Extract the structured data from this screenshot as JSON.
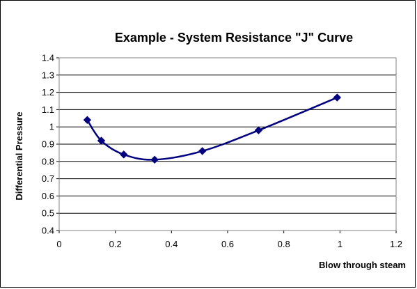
{
  "chart_data": {
    "type": "line",
    "title": "Example - System Resistance \"J\" Curve",
    "xlabel": "Blow through steam",
    "ylabel": "Differential Pressure",
    "xlim": [
      0,
      1.2
    ],
    "ylim": [
      0.4,
      1.4
    ],
    "x_ticks": [
      "0",
      "0.2",
      "0.4",
      "0.6",
      "0.8",
      "1",
      "1.2"
    ],
    "y_ticks": [
      "0.4",
      "0.5",
      "0.6",
      "0.7",
      "0.8",
      "0.9",
      "1",
      "1.1",
      "1.2",
      "1.3",
      "1.4"
    ],
    "grid": "horizontal",
    "legend": "none",
    "smooth": true,
    "line_color": "#000080",
    "marker": "diamond",
    "series": [
      {
        "x": [
          0.1,
          0.15,
          0.23,
          0.34,
          0.51,
          0.71,
          0.99
        ],
        "y": [
          1.04,
          0.92,
          0.84,
          0.81,
          0.86,
          0.98,
          1.17
        ]
      }
    ]
  }
}
